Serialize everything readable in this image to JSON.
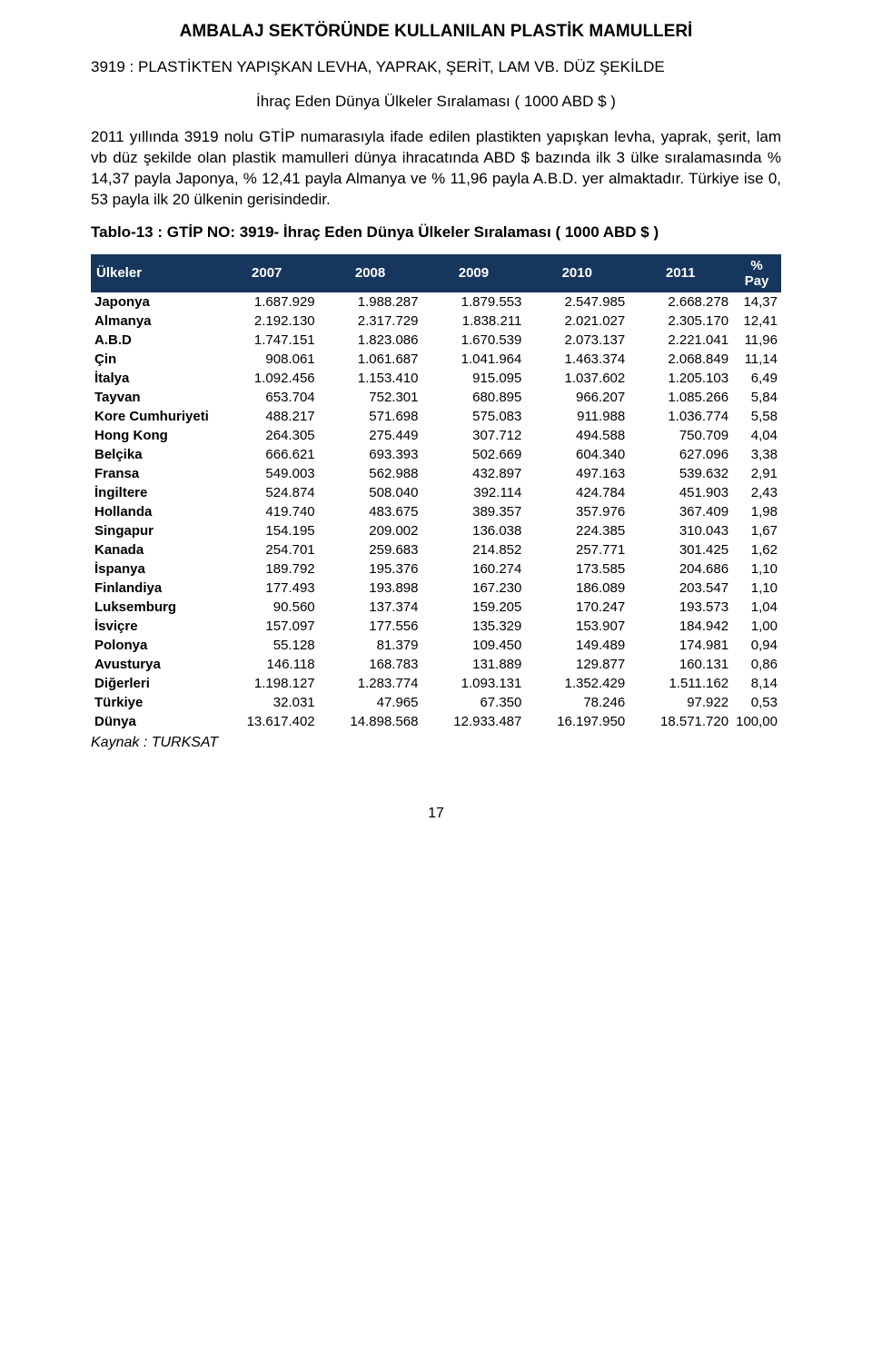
{
  "title_main": "AMBALAJ SEKTÖRÜNDE KULLANILAN PLASTİK MAMULLERİ",
  "subtitle": "3919 : PLASTİKTEN YAPIŞKAN LEVHA, YAPRAK, ŞERİT, LAM VB. DÜZ ŞEKİLDE",
  "center_line": "İhraç Eden Dünya Ülkeler Sıralaması  ( 1000 ABD $ )",
  "paragraph": "2011 yıllında 3919 nolu GTİP numarasıyla ifade edilen plastikten yapışkan levha, yaprak, şerit, lam vb düz şekilde olan plastik mamulleri dünya ihracatında ABD $ bazında ilk 3 ülke sıralamasında % 14,37 payla Japonya, % 12,41 payla Almanya ve % 11,96 payla A.B.D. yer almaktadır. Türkiye ise 0, 53 payla ilk 20 ülkenin gerisindedir.",
  "table_title": "Tablo-13 : GTİP NO: 3919- İhraç Eden Dünya Ülkeler Sıralaması  ( 1000 ABD $ )",
  "table": {
    "header_bg": "#17365d",
    "header_fg": "#ffffff",
    "columns": [
      "Ülkeler",
      "2007",
      "2008",
      "2009",
      "2010",
      "2011",
      "% Pay"
    ],
    "rows": [
      [
        "Japonya",
        "1.687.929",
        "1.988.287",
        "1.879.553",
        "2.547.985",
        "2.668.278",
        "14,37"
      ],
      [
        "Almanya",
        "2.192.130",
        "2.317.729",
        "1.838.211",
        "2.021.027",
        "2.305.170",
        "12,41"
      ],
      [
        "A.B.D",
        "1.747.151",
        "1.823.086",
        "1.670.539",
        "2.073.137",
        "2.221.041",
        "11,96"
      ],
      [
        "Çin",
        "908.061",
        "1.061.687",
        "1.041.964",
        "1.463.374",
        "2.068.849",
        "11,14"
      ],
      [
        "İtalya",
        "1.092.456",
        "1.153.410",
        "915.095",
        "1.037.602",
        "1.205.103",
        "6,49"
      ],
      [
        "Tayvan",
        "653.704",
        "752.301",
        "680.895",
        "966.207",
        "1.085.266",
        "5,84"
      ],
      [
        "Kore Cumhuriyeti",
        "488.217",
        "571.698",
        "575.083",
        "911.988",
        "1.036.774",
        "5,58"
      ],
      [
        "Hong Kong",
        "264.305",
        "275.449",
        "307.712",
        "494.588",
        "750.709",
        "4,04"
      ],
      [
        "Belçika",
        "666.621",
        "693.393",
        "502.669",
        "604.340",
        "627.096",
        "3,38"
      ],
      [
        "Fransa",
        "549.003",
        "562.988",
        "432.897",
        "497.163",
        "539.632",
        "2,91"
      ],
      [
        "İngiltere",
        "524.874",
        "508.040",
        "392.114",
        "424.784",
        "451.903",
        "2,43"
      ],
      [
        "Hollanda",
        "419.740",
        "483.675",
        "389.357",
        "357.976",
        "367.409",
        "1,98"
      ],
      [
        "Singapur",
        "154.195",
        "209.002",
        "136.038",
        "224.385",
        "310.043",
        "1,67"
      ],
      [
        "Kanada",
        "254.701",
        "259.683",
        "214.852",
        "257.771",
        "301.425",
        "1,62"
      ],
      [
        "İspanya",
        "189.792",
        "195.376",
        "160.274",
        "173.585",
        "204.686",
        "1,10"
      ],
      [
        "Finlandiya",
        "177.493",
        "193.898",
        "167.230",
        "186.089",
        "203.547",
        "1,10"
      ],
      [
        "Luksemburg",
        "90.560",
        "137.374",
        "159.205",
        "170.247",
        "193.573",
        "1,04"
      ],
      [
        "İsviçre",
        "157.097",
        "177.556",
        "135.329",
        "153.907",
        "184.942",
        "1,00"
      ],
      [
        "Polonya",
        "55.128",
        "81.379",
        "109.450",
        "149.489",
        "174.981",
        "0,94"
      ],
      [
        "Avusturya",
        "146.118",
        "168.783",
        "131.889",
        "129.877",
        "160.131",
        "0,86"
      ],
      [
        "Diğerleri",
        "1.198.127",
        "1.283.774",
        "1.093.131",
        "1.352.429",
        "1.511.162",
        "8,14"
      ],
      [
        "Türkiye",
        "32.031",
        "47.965",
        "67.350",
        "78.246",
        "97.922",
        "0,53"
      ],
      [
        "Dünya",
        "13.617.402",
        "14.898.568",
        "12.933.487",
        "16.197.950",
        "18.571.720",
        "100,00"
      ]
    ],
    "col_widths_pct": [
      18,
      15,
      15,
      15,
      15,
      15,
      7
    ],
    "font_size": 15
  },
  "source_label": "Kaynak : TURKSAT",
  "page_number": "17"
}
